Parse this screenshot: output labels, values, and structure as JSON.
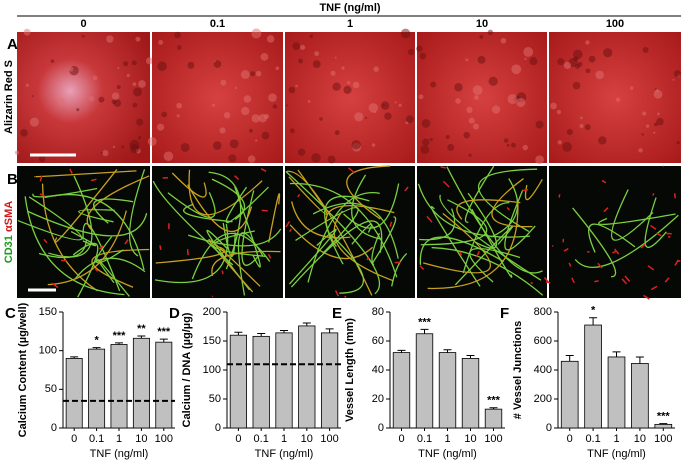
{
  "header": "TNF (ng/ml)",
  "columns": [
    "0",
    "0.1",
    "1",
    "10",
    "100"
  ],
  "rows": [
    {
      "panel": "A",
      "label": "Alizarin Red S"
    },
    {
      "panel": "B",
      "label_green": "CD31",
      "label_red": "αSMA"
    }
  ],
  "chart_data": [
    {
      "type": "bar",
      "panel": "C",
      "ylabel": "Calcium Content (µg/well)",
      "xlabel": "TNF (ng/ml)",
      "categories": [
        "0",
        "0.1",
        "1",
        "10",
        "100"
      ],
      "values": [
        90,
        102,
        108,
        116,
        111
      ],
      "errors": [
        2,
        2,
        2,
        3,
        4
      ],
      "annotations": [
        null,
        "*",
        "***",
        "**",
        "***"
      ],
      "reference_line": 35,
      "ylim": [
        0,
        150
      ],
      "yticks": [
        0,
        50,
        100,
        150
      ],
      "color": "#c0c0c0"
    },
    {
      "type": "bar",
      "panel": "D",
      "ylabel": "Calcium / DNA (µg/µg)",
      "xlabel": "TNF (ng/ml)",
      "categories": [
        "0",
        "0.1",
        "1",
        "10",
        "100"
      ],
      "values": [
        160,
        158,
        164,
        176,
        164
      ],
      "errors": [
        5,
        5,
        4,
        5,
        7
      ],
      "reference_line": 110,
      "ylim": [
        0,
        200
      ],
      "yticks": [
        0,
        50,
        100,
        150,
        200
      ],
      "color": "#c0c0c0"
    },
    {
      "type": "bar",
      "panel": "E",
      "ylabel": "Vessel Length (mm)",
      "xlabel": "TNF (ng/ml)",
      "categories": [
        "0",
        "0.1",
        "1",
        "10",
        "100"
      ],
      "values": [
        52,
        65,
        52,
        48,
        13
      ],
      "errors": [
        1.5,
        3,
        2,
        2,
        1
      ],
      "annotations": [
        null,
        "***",
        null,
        null,
        "***"
      ],
      "ylim": [
        0,
        80
      ],
      "yticks": [
        0,
        20,
        40,
        60,
        80
      ],
      "color": "#c0c0c0"
    },
    {
      "type": "bar",
      "panel": "F",
      "ylabel": "# Vessel Junctions",
      "xlabel": "TNF (ng/ml)",
      "categories": [
        "0",
        "0.1",
        "1",
        "10",
        "100"
      ],
      "values": [
        460,
        710,
        490,
        445,
        25
      ],
      "errors": [
        40,
        50,
        35,
        45,
        5
      ],
      "annotations": [
        null,
        "*",
        null,
        null,
        "***"
      ],
      "ylim": [
        0,
        800
      ],
      "yticks": [
        0,
        200,
        400,
        600,
        800
      ],
      "color": "#c0c0c0"
    }
  ]
}
